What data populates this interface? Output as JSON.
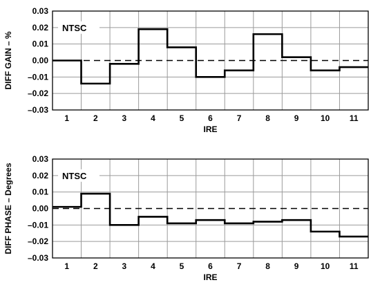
{
  "chart_data": [
    {
      "type": "line",
      "step": true,
      "ylabel": "DIFF GAIN – %",
      "xlabel": "IRE",
      "annotation": "NTSC",
      "categories": [
        "1",
        "2",
        "3",
        "4",
        "5",
        "6",
        "7",
        "8",
        "9",
        "10",
        "11"
      ],
      "ylim": [
        -0.03,
        0.03
      ],
      "yticks": [
        "0.03",
        "0.02",
        "0.01",
        "0.00",
        "–0.01",
        "–0.02",
        "–0.03"
      ],
      "grid": true,
      "zero_line": "dashed",
      "values": [
        0.0,
        -0.014,
        -0.002,
        0.019,
        0.008,
        -0.01,
        -0.006,
        0.016,
        0.002,
        -0.006,
        -0.004
      ]
    },
    {
      "type": "line",
      "step": true,
      "ylabel": "DIFF PHASE – Degrees",
      "xlabel": "IRE",
      "annotation": "NTSC",
      "categories": [
        "1",
        "2",
        "3",
        "4",
        "5",
        "6",
        "7",
        "8",
        "9",
        "10",
        "11"
      ],
      "ylim": [
        -0.03,
        0.03
      ],
      "yticks": [
        "0.03",
        "0.02",
        "0.01",
        "0.00",
        "–0.01",
        "–0.02",
        "–0.03"
      ],
      "grid": true,
      "zero_line": "dashed",
      "values": [
        0.001,
        0.009,
        -0.01,
        -0.005,
        -0.009,
        -0.007,
        -0.009,
        -0.008,
        -0.007,
        -0.014,
        -0.017
      ]
    }
  ]
}
